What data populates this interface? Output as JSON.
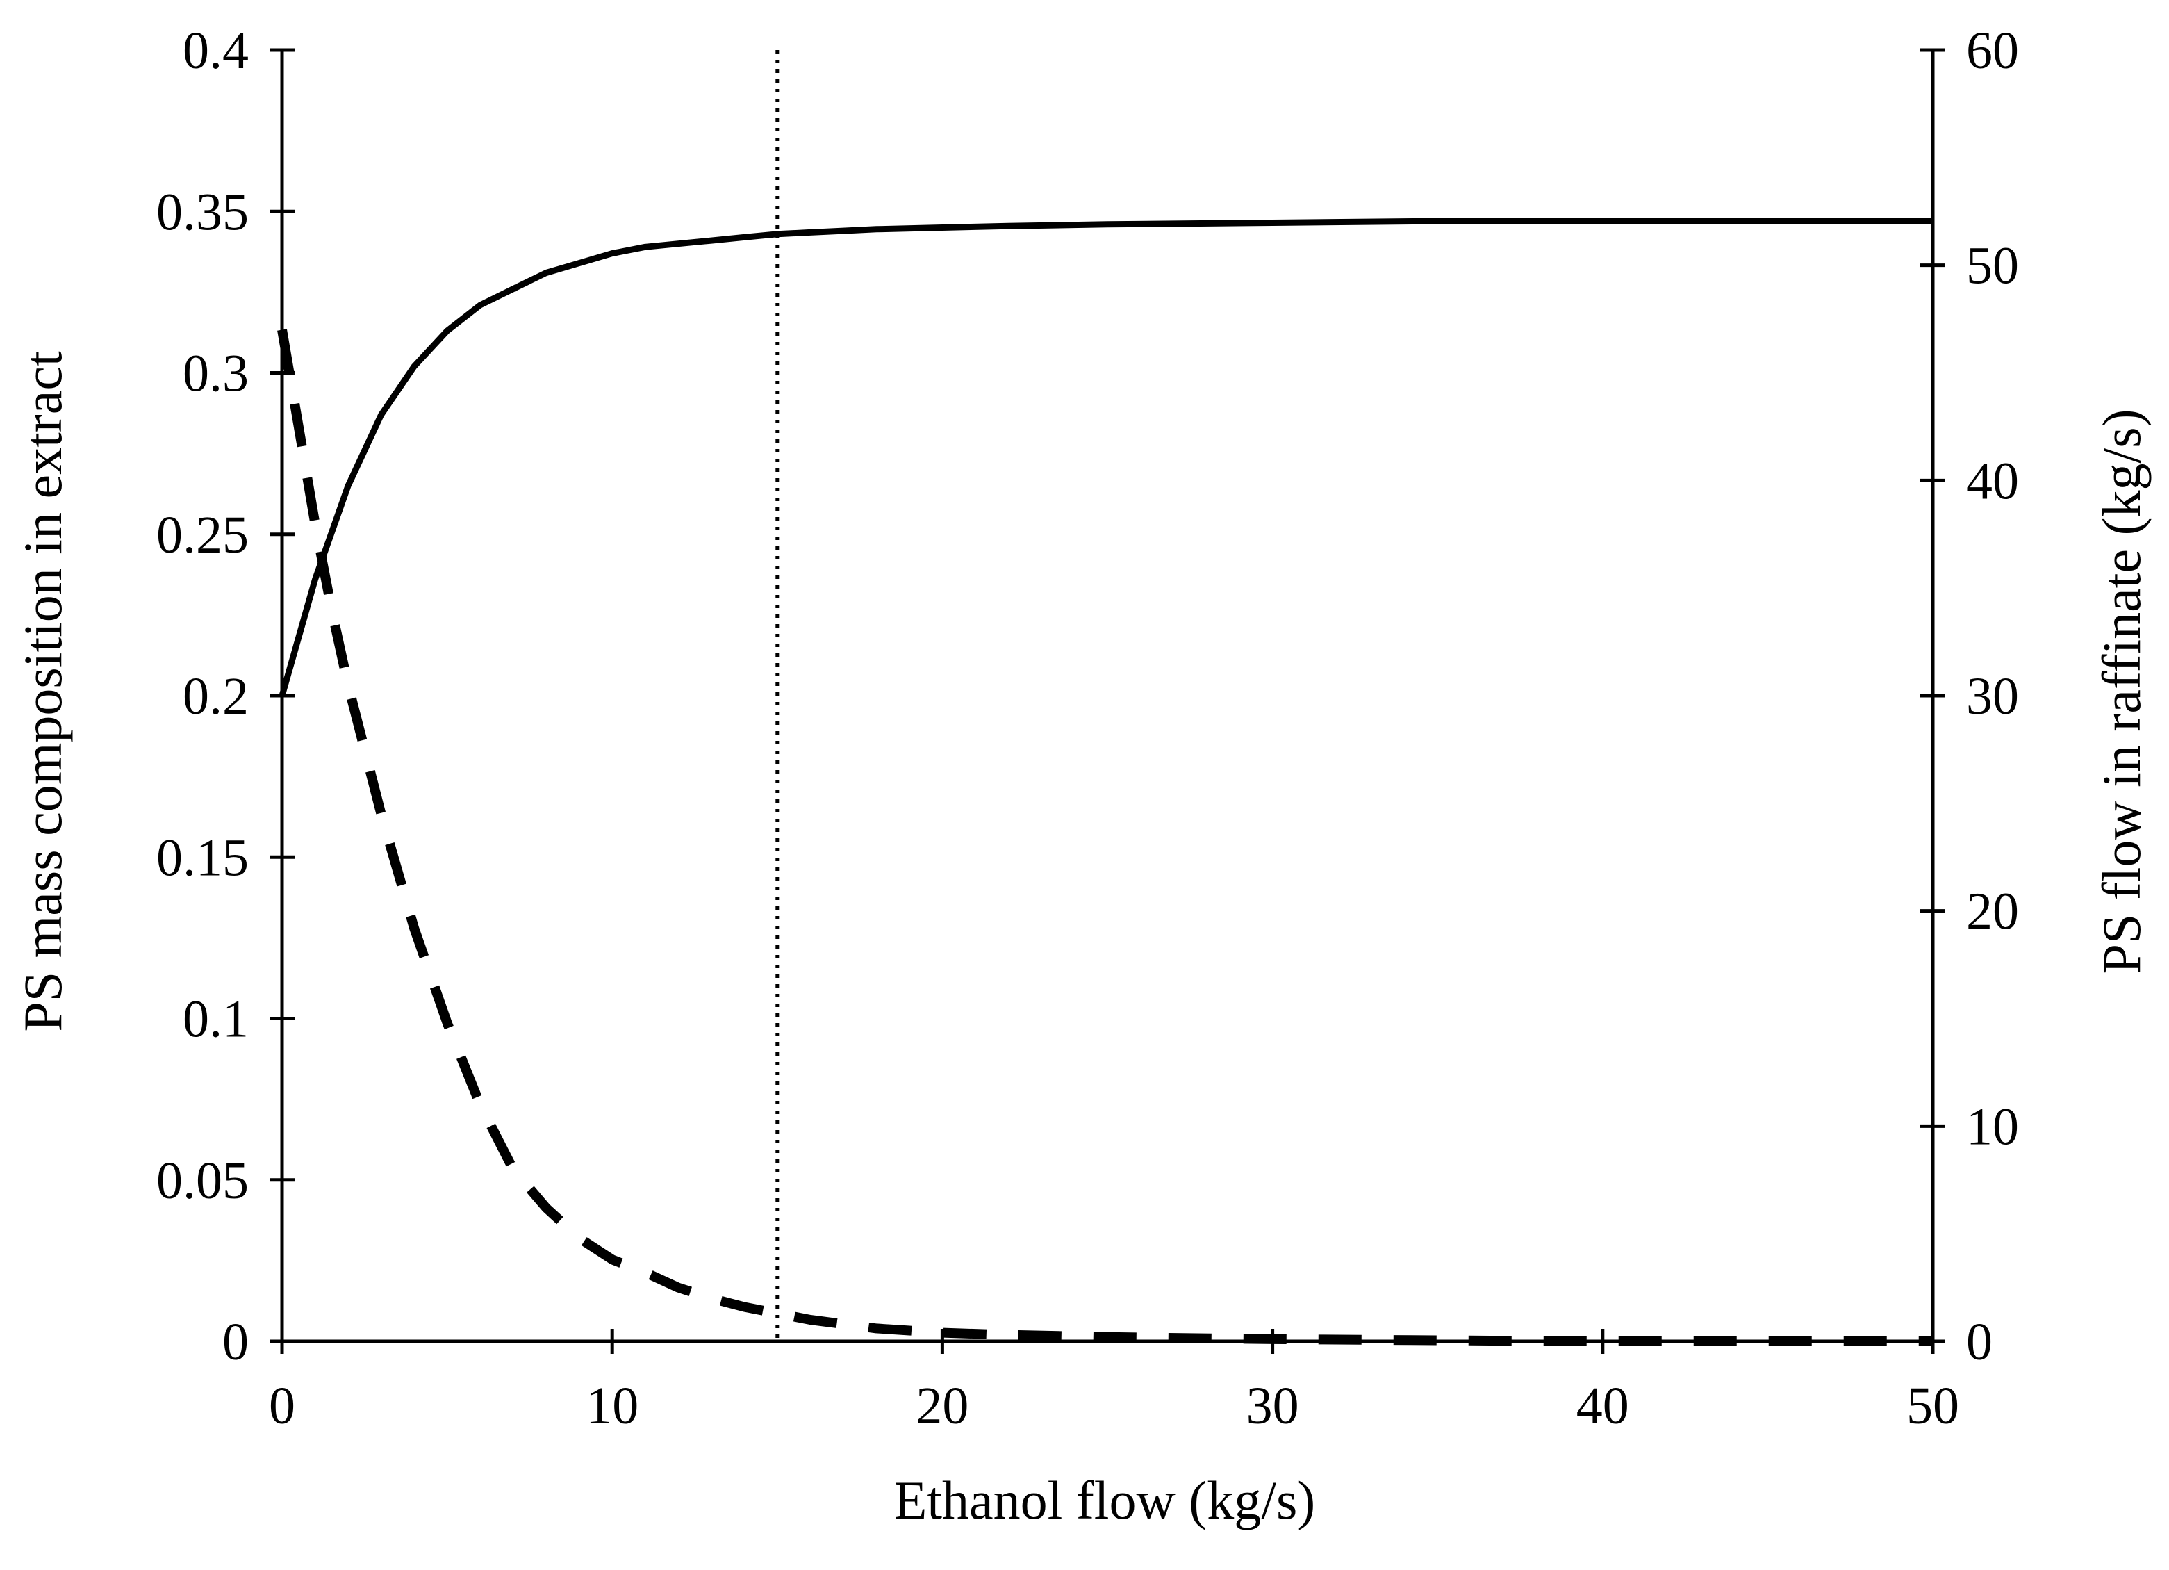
{
  "chart_data": {
    "type": "line",
    "xlabel": "Ethanol flow (kg/s)",
    "ylabel_left": "PS mass composition in extract",
    "ylabel_right": "PS flow in raffinate (kg/s)",
    "xlim": [
      0,
      50
    ],
    "ylim_left": [
      0,
      0.4
    ],
    "ylim_right": [
      0,
      60
    ],
    "x_ticks": [
      0,
      10,
      20,
      30,
      40,
      50
    ],
    "x_tick_labels": [
      "0",
      "10",
      "20",
      "30",
      "40",
      "50"
    ],
    "y_left_ticks": [
      0,
      0.05,
      0.1,
      0.15,
      0.2,
      0.25,
      0.3,
      0.35,
      0.4
    ],
    "y_left_tick_labels": [
      "0",
      "0.05",
      "0.1",
      "0.15",
      "0.2",
      "0.25",
      "0.3",
      "0.35",
      "0.4"
    ],
    "y_right_ticks": [
      0,
      10,
      20,
      30,
      40,
      50,
      60
    ],
    "y_right_tick_labels": [
      "0",
      "10",
      "20",
      "30",
      "40",
      "50",
      "60"
    ],
    "grid": false,
    "legend": "none",
    "series": [
      {
        "axis": "left",
        "style": "solid",
        "color": "#000000",
        "x": [
          0,
          1,
          2,
          3,
          4,
          5,
          6,
          7,
          8,
          9,
          10,
          11,
          12,
          13,
          14,
          15,
          16,
          17,
          18,
          20,
          22,
          25,
          30,
          35,
          40,
          45,
          50
        ],
        "values": [
          0.2,
          0.236,
          0.265,
          0.287,
          0.302,
          0.313,
          0.321,
          0.326,
          0.331,
          0.334,
          0.337,
          0.339,
          0.34,
          0.341,
          0.342,
          0.343,
          0.3435,
          0.344,
          0.3445,
          0.345,
          0.3455,
          0.346,
          0.3465,
          0.347,
          0.347,
          0.347,
          0.347
        ]
      },
      {
        "axis": "right",
        "style": "dashed",
        "color": "#000000",
        "x": [
          0,
          0.5,
          1,
          1.5,
          2,
          3,
          4,
          5,
          6,
          7,
          8,
          9,
          10,
          11,
          12,
          13,
          14,
          15,
          16,
          17,
          18,
          19,
          20,
          22,
          25,
          30,
          35,
          40,
          45,
          50
        ],
        "values": [
          47,
          42.5,
          38,
          34,
          30.5,
          24.5,
          19.2,
          14.8,
          11.0,
          8.0,
          6.2,
          4.8,
          3.8,
          3.2,
          2.5,
          2.0,
          1.6,
          1.3,
          1.0,
          0.8,
          0.6,
          0.5,
          0.4,
          0.3,
          0.2,
          0.1,
          0.05,
          0.0,
          0.0,
          0.0
        ]
      }
    ],
    "reference_lines": [
      {
        "orientation": "vertical",
        "x": 15,
        "style": "dotted"
      }
    ]
  }
}
